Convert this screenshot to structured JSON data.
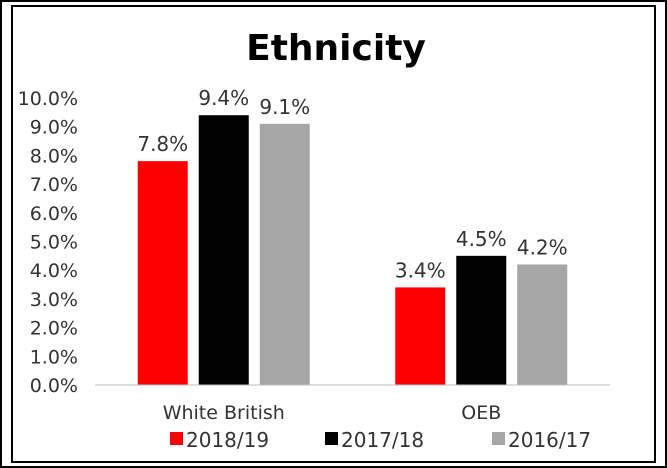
{
  "chart_data": {
    "type": "bar",
    "title": "Ethnicity",
    "categories": [
      "White British",
      "OEB"
    ],
    "series": [
      {
        "name": "2018/19",
        "values": [
          7.8,
          3.4
        ],
        "color": "#ff0000",
        "labels": [
          "7.8%",
          "3.4%"
        ]
      },
      {
        "name": "2017/18",
        "values": [
          9.4,
          4.5
        ],
        "color": "#000000",
        "labels": [
          "9.4%",
          "4.5%"
        ]
      },
      {
        "name": "2016/17",
        "values": [
          9.1,
          4.2
        ],
        "color": "#a6a6a6",
        "labels": [
          "9.1%",
          "4.2%"
        ]
      }
    ],
    "ylim": [
      0,
      10
    ],
    "yticks": [
      "0.0%",
      "1.0%",
      "2.0%",
      "3.0%",
      "4.0%",
      "5.0%",
      "6.0%",
      "7.0%",
      "8.0%",
      "9.0%",
      "10.0%"
    ],
    "legend_position": "bottom",
    "grid": false
  }
}
